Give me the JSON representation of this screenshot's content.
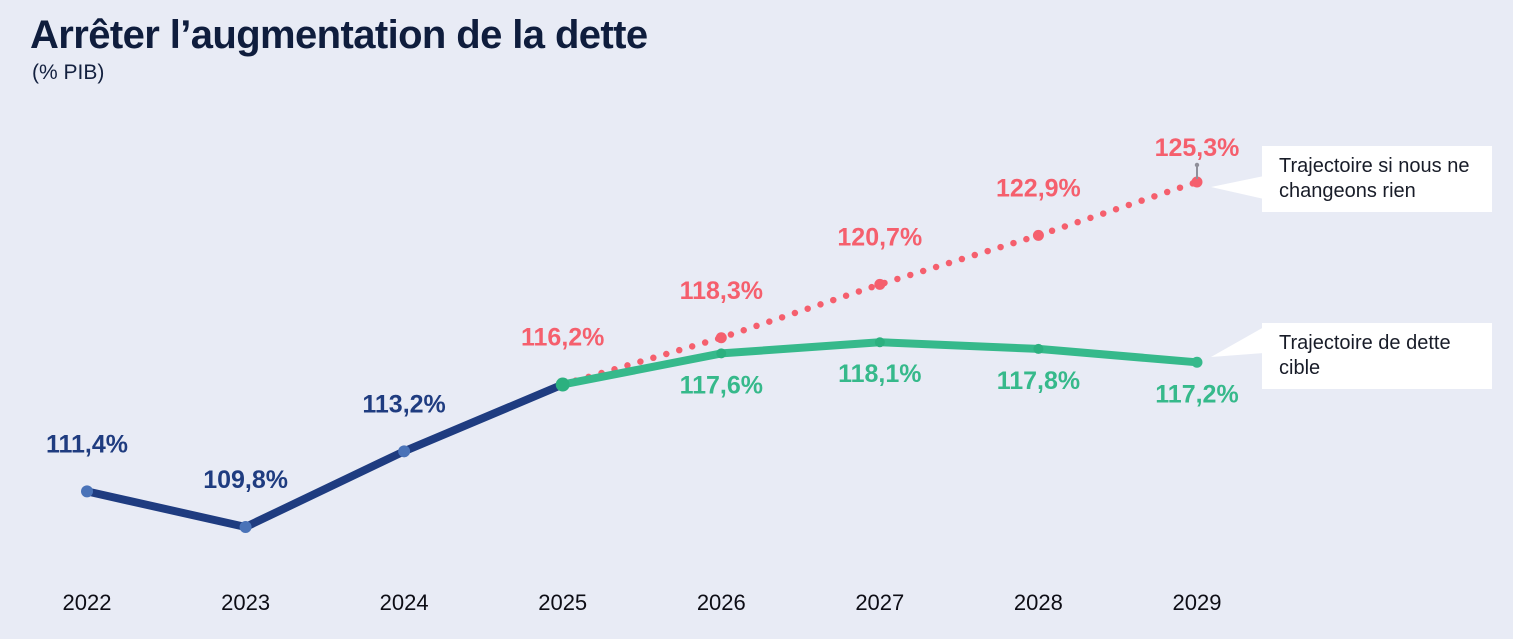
{
  "background": "#e8ebf5",
  "header": {
    "title": "Arrêter l’augmentation de la dette",
    "subtitle": "(% PIB)"
  },
  "chart_data": {
    "type": "line",
    "title": "Arrêter l’augmentation de la dette",
    "unit": "% PIB",
    "grid": false,
    "x_categories": [
      "2022",
      "2023",
      "2024",
      "2025",
      "2026",
      "2027",
      "2028",
      "2029"
    ],
    "ylim": [
      108,
      127
    ],
    "series": [
      {
        "id": "historical-debt",
        "style": "solid",
        "color": "#1f3c80",
        "marker_color": "#4a73b8",
        "points": [
          {
            "x": "2022",
            "value": 111.4,
            "label": "111,4%",
            "label_side": "above"
          },
          {
            "x": "2023",
            "value": 109.8,
            "label": "109,8%",
            "label_side": "above"
          },
          {
            "x": "2024",
            "value": 113.2,
            "label": "113,2%",
            "label_side": "above"
          },
          {
            "x": "2025",
            "value": 116.2,
            "label": null
          }
        ]
      },
      {
        "id": "no-change-trajectory",
        "style": "dotted",
        "color": "#f55f6d",
        "marker_color": "#f55f6d",
        "points": [
          {
            "x": "2025",
            "value": 116.2,
            "label": "116,2%",
            "label_side": "above"
          },
          {
            "x": "2026",
            "value": 118.3,
            "label": "118,3%",
            "label_side": "above"
          },
          {
            "x": "2027",
            "value": 120.7,
            "label": "120,7%",
            "label_side": "above"
          },
          {
            "x": "2028",
            "value": 122.9,
            "label": "122,9%",
            "label_side": "above"
          },
          {
            "x": "2029",
            "value": 125.3,
            "label": "125,3%",
            "label_side": "above-close",
            "pin": true
          }
        ]
      },
      {
        "id": "target-trajectory",
        "style": "solid",
        "color": "#36b98b",
        "marker_color": "#2cb07f",
        "points": [
          {
            "x": "2025",
            "value": 116.2,
            "label": null
          },
          {
            "x": "2026",
            "value": 117.6,
            "label": "117,6%",
            "label_side": "below"
          },
          {
            "x": "2027",
            "value": 118.1,
            "label": "118,1%",
            "label_side": "below"
          },
          {
            "x": "2028",
            "value": 117.8,
            "label": "117,8%",
            "label_side": "below"
          },
          {
            "x": "2029",
            "value": 117.2,
            "label": "117,2%",
            "label_side": "below"
          }
        ]
      }
    ],
    "annotations": [
      {
        "text": "Trajectoire si nous ne changeons rien",
        "target_series": "no-change-trajectory",
        "target_x": "2029"
      },
      {
        "text": "Trajectoire de dette cible",
        "target_series": "target-trajectory",
        "target_x": "2029"
      }
    ],
    "legend_position": "right-callouts",
    "pin_color": "#8f8f9a"
  }
}
